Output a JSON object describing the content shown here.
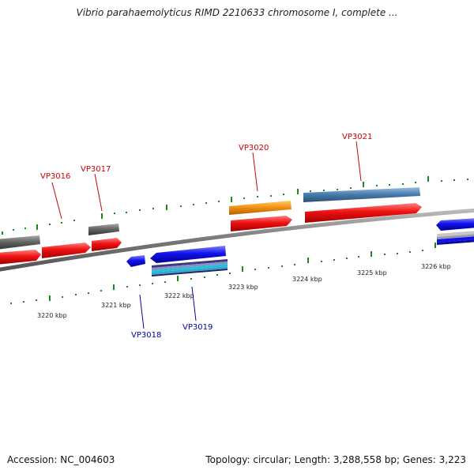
{
  "title": "Vibrio parahaemolyticus RIMD 2210633 chromosome I, complete ...",
  "footer": {
    "accession": "Accession: NC_004603",
    "topology": "Topology: circular; Length: 3,288,558 bp; Genes: 3,223"
  },
  "scale_labels": [
    "3220 kbp",
    "3221 kbp",
    "3222 kbp",
    "3223 kbp",
    "3224 kbp",
    "3225 kbp",
    "3226 kbp"
  ],
  "gene_labels": [
    "VP3016",
    "VP3017",
    "VP3018",
    "VP3019",
    "VP3020",
    "VP3021"
  ],
  "colors": {
    "forward_gene": "#ee1111",
    "reverse_gene": "#1111ee",
    "grey_feature": "#666666",
    "orange_feature": "#f39414",
    "steelblue_feature": "#4a7fb0",
    "cyan_feature": "#22c4cc",
    "tick_green": "#1a8a1a",
    "forward_label": "#cc0000",
    "reverse_label": "#0000aa",
    "backbone": "#777777"
  }
}
